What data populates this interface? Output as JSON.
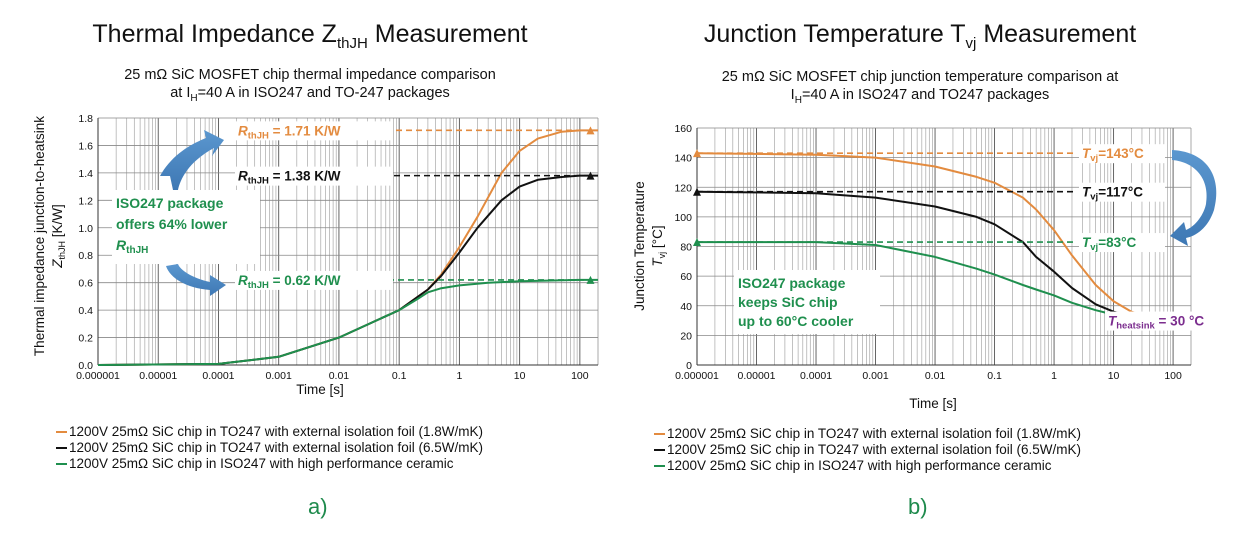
{
  "colors": {
    "orange": "#e38b3f",
    "black": "#111111",
    "green": "#1f8f4e",
    "purple": "#7b2d8e",
    "blue": "#4a86c0"
  },
  "panels": [
    {
      "heading": "Thermal Impedance Z",
      "heading_sub": "thJH",
      "heading_tail": " Measurement",
      "subtitle_1": "25 mΩ SiC MOSFET chip thermal impedance comparison",
      "subtitle_2_pre": "at I",
      "subtitle_2_sub": "H",
      "subtitle_2_post": "=40 A in ISO247 and TO-247 packages",
      "label": "a)"
    },
    {
      "heading": "Junction Temperature T",
      "heading_sub": "vj",
      "heading_tail": " Measurement",
      "subtitle_1": "25 mΩ SiC MOSFET chip junction temperature comparison at",
      "subtitle_2_pre": "I",
      "subtitle_2_sub": "H",
      "subtitle_2_post": "=40 A in ISO247 and TO247 packages",
      "label": "b)"
    }
  ],
  "legend": [
    {
      "text": "1200V 25mΩ SiC chip in TO247 with external isolation foil (1.8W/mK)",
      "color": "#e38b3f"
    },
    {
      "text": "1200V 25mΩ SiC chip in TO247 with external isolation foil (6.5W/mK)",
      "color": "#111111"
    },
    {
      "text": "1200V 25mΩ SiC chip in ISO247 with high performance ceramic",
      "color": "#1f8f4e"
    }
  ],
  "chart_data": [
    {
      "type": "line",
      "x_scale": "log",
      "xlim": [
        1e-06,
        200
      ],
      "ylim": [
        0,
        1.8
      ],
      "x_ticks": [
        "0.000001",
        "0.00001",
        "0.0001",
        "0.001",
        "0.01",
        "0.1",
        "1",
        "10",
        "100"
      ],
      "y_ticks": [
        "0.0",
        "0.2",
        "0.4",
        "0.6",
        "0.8",
        "1.0",
        "1.2",
        "1.4",
        "1.6",
        "1.8"
      ],
      "xlabel": "Time [s]",
      "ylabel_1": "Thermal impedance junction-to-heatsink",
      "ylabel_2_pre": "Z",
      "ylabel_2_sub": "thJH",
      "ylabel_2_post": " [K/W]",
      "grid": true,
      "series": [
        {
          "color": "#e38b3f",
          "x": [
            1e-06,
            0.0001,
            0.001,
            0.01,
            0.1,
            0.3,
            0.5,
            1,
            2,
            5,
            10,
            20,
            50,
            100,
            200
          ],
          "y": [
            0.0,
            0.008,
            0.06,
            0.2,
            0.4,
            0.55,
            0.66,
            0.86,
            1.08,
            1.4,
            1.56,
            1.65,
            1.7,
            1.71,
            1.71
          ]
        },
        {
          "color": "#111111",
          "x": [
            1e-06,
            0.0001,
            0.001,
            0.01,
            0.1,
            0.3,
            0.5,
            1,
            2,
            5,
            10,
            20,
            50,
            100,
            200
          ],
          "y": [
            0.0,
            0.008,
            0.06,
            0.2,
            0.4,
            0.55,
            0.65,
            0.82,
            1.0,
            1.2,
            1.3,
            1.35,
            1.37,
            1.38,
            1.38
          ]
        },
        {
          "color": "#1f8f4e",
          "x": [
            1e-06,
            0.0001,
            0.001,
            0.01,
            0.1,
            0.2,
            0.3,
            0.5,
            1,
            3,
            10,
            100,
            200
          ],
          "y": [
            0.0,
            0.008,
            0.06,
            0.2,
            0.4,
            0.48,
            0.53,
            0.56,
            0.58,
            0.6,
            0.61,
            0.62,
            0.62
          ]
        }
      ],
      "annotations": [
        {
          "pre": "R",
          "sub": "thJH",
          "post": " = 1.71 K/W",
          "value": 1.71,
          "color": "#e38b3f"
        },
        {
          "pre": "R",
          "sub": "thJH",
          "post": " = 1.38 K/W",
          "value": 1.38,
          "color": "#111111"
        },
        {
          "pre": "R",
          "sub": "thJH",
          "post": " = 0.62 K/W",
          "value": 0.62,
          "color": "#1f8f4e"
        }
      ],
      "note": {
        "line1": "ISO247 package",
        "line2": "offers 64% lower",
        "line3_pre": "R",
        "line3_sub": "thJH"
      }
    },
    {
      "type": "line",
      "x_scale": "log",
      "xlim": [
        1e-06,
        200
      ],
      "ylim": [
        0,
        160
      ],
      "x_ticks": [
        "0.000001",
        "0.00001",
        "0.0001",
        "0.001",
        "0.01",
        "0.1",
        "1",
        "10",
        "100"
      ],
      "y_ticks": [
        "0",
        "20",
        "40",
        "60",
        "80",
        "100",
        "120",
        "140",
        "160"
      ],
      "xlabel": "Time [s]",
      "ylabel_1": "Junction Temperature",
      "ylabel_2_pre": "T",
      "ylabel_2_sub": "vj",
      "ylabel_2_post": " [°C]",
      "grid": true,
      "series": [
        {
          "color": "#e38b3f",
          "x": [
            1e-06,
            0.0001,
            0.001,
            0.01,
            0.05,
            0.1,
            0.3,
            0.5,
            1,
            2,
            5,
            10,
            20,
            50,
            100,
            200
          ],
          "y": [
            143,
            142,
            140,
            134,
            127,
            123,
            113,
            105,
            91,
            74,
            54,
            43,
            36,
            31,
            30,
            30
          ]
        },
        {
          "color": "#111111",
          "x": [
            1e-06,
            0.0001,
            0.001,
            0.01,
            0.05,
            0.1,
            0.3,
            0.5,
            1,
            2,
            5,
            10,
            20,
            50,
            100,
            200
          ],
          "y": [
            117,
            116,
            113,
            107,
            100,
            95,
            83,
            73,
            63,
            52,
            41,
            36,
            33,
            31,
            30,
            30
          ]
        },
        {
          "color": "#1f8f4e",
          "x": [
            1e-06,
            0.0001,
            0.001,
            0.01,
            0.05,
            0.1,
            0.3,
            0.5,
            1,
            2,
            5,
            10,
            20,
            50,
            100,
            200
          ],
          "y": [
            83,
            83,
            81,
            73,
            65,
            61,
            54,
            51,
            47,
            42,
            37,
            34,
            32,
            31,
            30,
            30
          ]
        }
      ],
      "annotations": [
        {
          "pre": "T",
          "sub": "vj",
          "post": "=143°C",
          "value": 143,
          "color": "#e38b3f"
        },
        {
          "pre": "T",
          "sub": "vj",
          "post": "=117°C",
          "value": 117,
          "color": "#111111"
        },
        {
          "pre": "T",
          "sub": "vj",
          "post": "=83°C",
          "value": 83,
          "color": "#1f8f4e"
        },
        {
          "pre": "T",
          "sub": "heatsink",
          "post": " = 30 °C",
          "value": 30,
          "color": "#7b2d8e"
        }
      ],
      "note": {
        "line1": "ISO247 package",
        "line2": "keeps SiC chip",
        "line3": "up to 60°C cooler"
      }
    }
  ]
}
